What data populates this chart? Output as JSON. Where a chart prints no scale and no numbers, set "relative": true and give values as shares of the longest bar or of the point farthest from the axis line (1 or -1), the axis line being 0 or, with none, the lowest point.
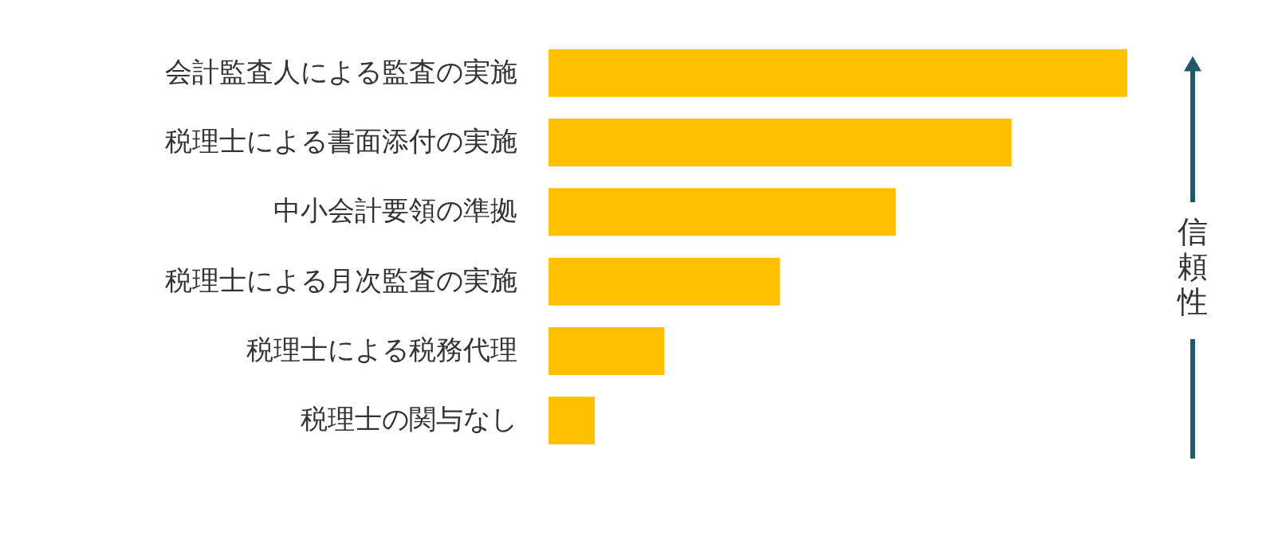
{
  "chart_data": {
    "type": "bar",
    "orientation": "horizontal",
    "relative": true,
    "categories": [
      "会計監査人による監査の実施",
      "税理士による書面添付の実施",
      "中小会計要領の準拠",
      "税理士による月次監査の実施",
      "税理士による税務代理",
      "税理士の関与なし"
    ],
    "values": [
      1.0,
      0.8,
      0.6,
      0.4,
      0.2,
      0.08
    ],
    "color": "#ffc000",
    "annotations": [
      "信頼性"
    ],
    "grid": false
  }
}
